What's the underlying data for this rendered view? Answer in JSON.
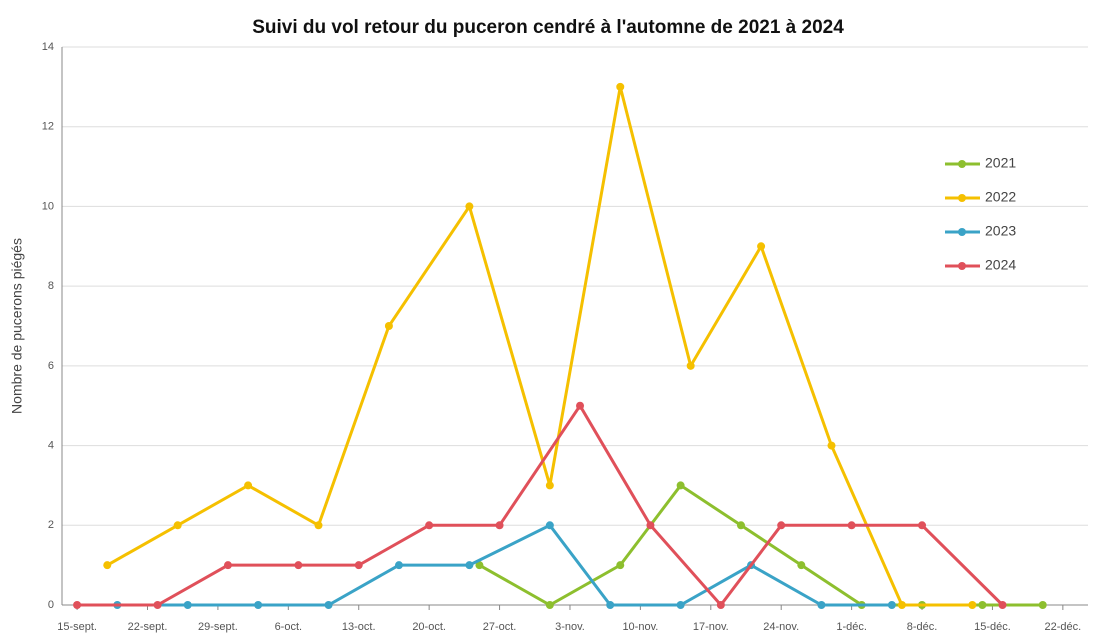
{
  "chart_data": {
    "type": "line",
    "title": "Suivi du vol retour du puceron cendré à l'automne de 2021 à 2024",
    "y_label": "Nombre de pucerons piégés",
    "xlim": [
      -1.5,
      100.5
    ],
    "xticks": [
      {
        "value": 0,
        "label": "15-sept."
      },
      {
        "value": 7,
        "label": "22-sept."
      },
      {
        "value": 14,
        "label": "29-sept."
      },
      {
        "value": 21,
        "label": "6-oct."
      },
      {
        "value": 28,
        "label": "13-oct."
      },
      {
        "value": 35,
        "label": "20-oct."
      },
      {
        "value": 42,
        "label": "27-oct."
      },
      {
        "value": 49,
        "label": "3-nov."
      },
      {
        "value": 56,
        "label": "10-nov."
      },
      {
        "value": 63,
        "label": "17-nov."
      },
      {
        "value": 70,
        "label": "24-nov."
      },
      {
        "value": 77,
        "label": "1-déc."
      },
      {
        "value": 84,
        "label": "8-déc."
      },
      {
        "value": 91,
        "label": "15-déc."
      },
      {
        "value": 98,
        "label": "22-déc."
      }
    ],
    "ylim": [
      0,
      14
    ],
    "yticks": [
      0,
      2,
      4,
      6,
      8,
      10,
      12,
      14
    ],
    "grid": true,
    "legend": "right",
    "series": [
      {
        "name": "2021",
        "color": "#8dbf2e",
        "x": [
          40,
          47,
          54,
          60,
          66,
          72,
          78,
          84,
          90,
          96
        ],
        "values": [
          1,
          0,
          1,
          3,
          2,
          1,
          0,
          0,
          0,
          0
        ]
      },
      {
        "name": "2022",
        "color": "#f5c000",
        "x": [
          3,
          10,
          17,
          24,
          31,
          39,
          47,
          54,
          61,
          68,
          75,
          82,
          89
        ],
        "values": [
          1,
          2,
          3,
          2,
          7,
          10,
          3,
          13,
          6,
          9,
          4,
          0,
          0
        ]
      },
      {
        "name": "2023",
        "color": "#3aa3c7",
        "x": [
          4,
          11,
          18,
          25,
          32,
          39,
          47,
          53,
          60,
          67,
          74,
          81
        ],
        "values": [
          0,
          0,
          0,
          0,
          1,
          1,
          2,
          0,
          0,
          1,
          0,
          0
        ]
      },
      {
        "name": "2024",
        "color": "#e0505a",
        "x": [
          0,
          8,
          15,
          22,
          28,
          35,
          42,
          50,
          57,
          64,
          70,
          77,
          84,
          92
        ],
        "values": [
          0,
          0,
          1,
          1,
          1,
          2,
          2,
          5,
          2,
          0,
          2,
          2,
          2,
          0
        ]
      }
    ]
  }
}
